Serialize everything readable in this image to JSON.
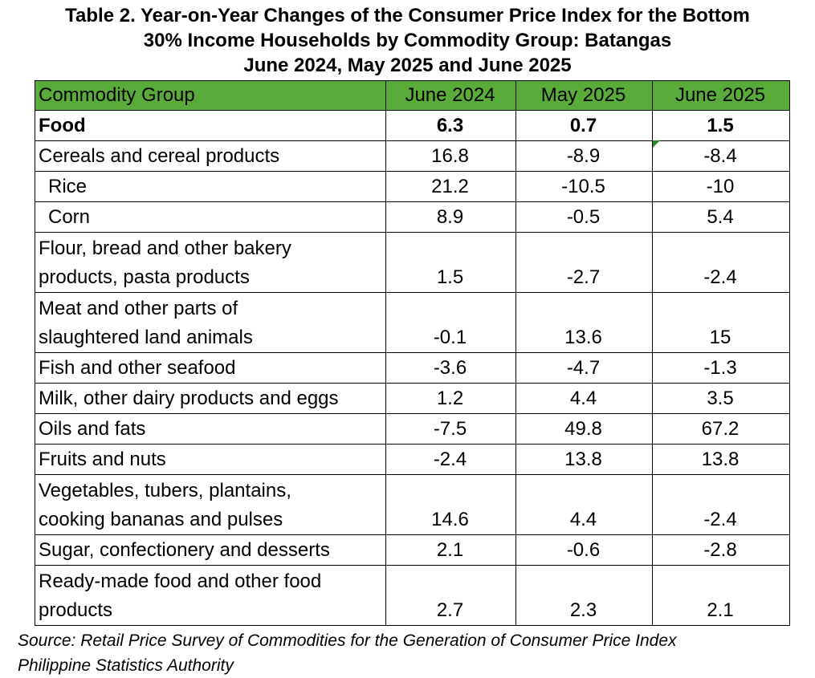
{
  "title": {
    "line1": "Table 2. Year-on-Year Changes of the Consumer Price Index for the Bottom",
    "line2": "30% Income Households by Commodity Group: Batangas",
    "line3": "June 2024, May 2025 and June 2025"
  },
  "table": {
    "headers": [
      "Commodity Group",
      "June 2024",
      "May 2025",
      "June 2025"
    ],
    "header_color": "#5aac3a",
    "rows": [
      {
        "label": "Food",
        "values": [
          "6.3",
          "0.7",
          "1.5"
        ]
      },
      {
        "label": "Cereals and cereal products",
        "values": [
          "16.8",
          "-8.9",
          "-8.4"
        ]
      },
      {
        "label": "Rice",
        "values": [
          "21.2",
          "-10.5",
          "-10"
        ]
      },
      {
        "label": "Corn",
        "values": [
          "8.9",
          "-0.5",
          "5.4"
        ]
      },
      {
        "label": [
          "Flour, bread and other bakery",
          "products, pasta products"
        ],
        "values": [
          "1.5",
          "-2.7",
          "-2.4"
        ]
      },
      {
        "label": [
          "Meat and other parts of",
          "slaughtered land animals"
        ],
        "values": [
          "-0.1",
          "13.6",
          "15"
        ]
      },
      {
        "label": "Fish and other seafood",
        "values": [
          "-3.6",
          "-4.7",
          "-1.3"
        ]
      },
      {
        "label": "Milk, other dairy products and eggs",
        "values": [
          "1.2",
          "4.4",
          "3.5"
        ]
      },
      {
        "label": "Oils and fats",
        "values": [
          "-7.5",
          "49.8",
          "67.2"
        ]
      },
      {
        "label": "Fruits and nuts",
        "values": [
          "-2.4",
          "13.8",
          "13.8"
        ]
      },
      {
        "label": [
          "Vegetables, tubers, plantains,",
          "cooking bananas and pulses"
        ],
        "values": [
          "14.6",
          "4.4",
          "-2.4"
        ]
      },
      {
        "label": "Sugar, confectionery and desserts",
        "values": [
          "2.1",
          "-0.6",
          "-2.8"
        ]
      },
      {
        "label": [
          "Ready-made food and other food",
          "products"
        ],
        "values": [
          "2.7",
          "2.3",
          "2.1"
        ]
      }
    ]
  },
  "source": {
    "line1": "Source: Retail Price Survey of Commodities for the Generation of Consumer Price Index",
    "line2": "Philippine Statistics Authority"
  }
}
